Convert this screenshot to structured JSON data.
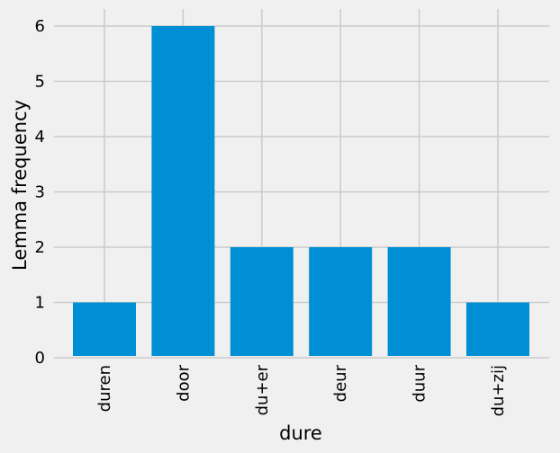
{
  "chart_data": {
    "type": "bar",
    "title": "",
    "xlabel": "dure",
    "ylabel": "Lemma frequency",
    "categories": [
      "duren",
      "door",
      "du+er",
      "deur",
      "duur",
      "du+zij"
    ],
    "values": [
      1,
      6,
      2,
      2,
      2,
      1
    ],
    "ylim": [
      0,
      6.3
    ],
    "yticks": [
      0,
      1,
      2,
      3,
      4,
      5,
      6
    ],
    "grid": true,
    "legend": "none",
    "x_tick_rotation": "vertical",
    "colors": {
      "bar": "#008fd5",
      "grid": "#cbcbcb",
      "background": "#f0f0f0",
      "text": "#000000"
    }
  }
}
